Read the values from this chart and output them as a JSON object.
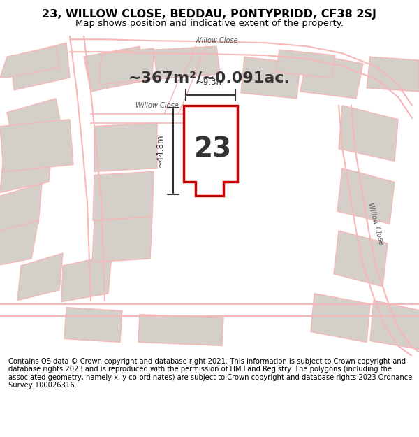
{
  "title_line1": "23, WILLOW CLOSE, BEDDAU, PONTYPRIDD, CF38 2SJ",
  "title_line2": "Map shows position and indicative extent of the property.",
  "area_text": "~367m²/~0.091ac.",
  "label_number": "23",
  "dim_width": "~9.3m",
  "dim_height": "~44.8m",
  "road_label1": "Willow Close",
  "road_label2": "Willow Close",
  "road_label3": "Willow Close",
  "footer": "Contains OS data © Crown copyright and database right 2021. This information is subject to Crown copyright and database rights 2023 and is reproduced with the permission of HM Land Registry. The polygons (including the associated geometry, namely x, y co-ordinates) are subject to Crown copyright and database rights 2023 Ordnance Survey 100026316.",
  "bg_color": "#f0ece8",
  "map_bg": "#e8e4e0",
  "highlight_color": "#cc0000",
  "plot_fill": "#ffffff",
  "road_line_color": "#f5b8b8",
  "building_fill": "#d4cfc9",
  "title_bg": "#ffffff",
  "footer_bg": "#ffffff"
}
